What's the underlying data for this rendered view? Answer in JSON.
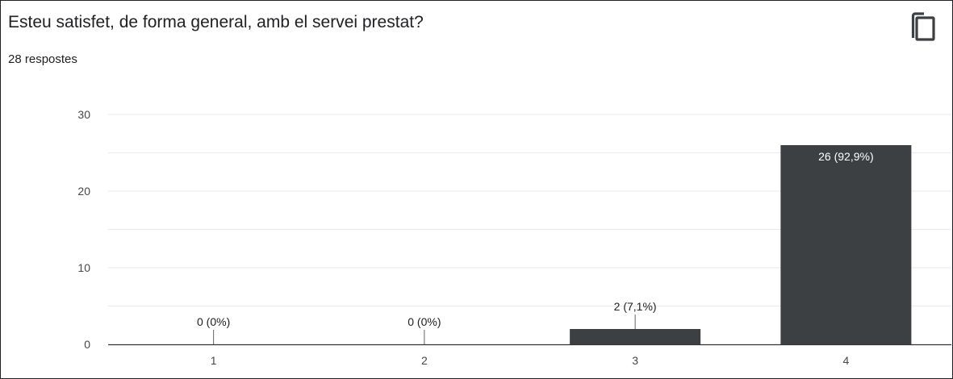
{
  "header": {
    "question": "Esteu satisfet, de forma general, amb el servei prestat?",
    "responses": "28 respostes",
    "copy_icon": "copy-icon"
  },
  "colors": {
    "bar": "#3c4043",
    "grid": "#e8eaed",
    "axis": "#333333",
    "label_outside": "#202124",
    "label_inside": "#ffffff"
  },
  "chart_data": {
    "type": "bar",
    "categories": [
      "1",
      "2",
      "3",
      "4"
    ],
    "values": [
      0,
      0,
      2,
      26
    ],
    "data_labels": [
      "0 (0%)",
      "0 (0%)",
      "2 (7,1%)",
      "26 (92,9%)"
    ],
    "yticks": [
      "0",
      "10",
      "20",
      "30"
    ],
    "ylim": [
      0,
      30
    ],
    "minor_gridlines": [
      5,
      15,
      25
    ],
    "title": "Esteu satisfet, de forma general, amb el servei prestat?",
    "xlabel": "",
    "ylabel": "",
    "grid": true,
    "legend": "none"
  }
}
